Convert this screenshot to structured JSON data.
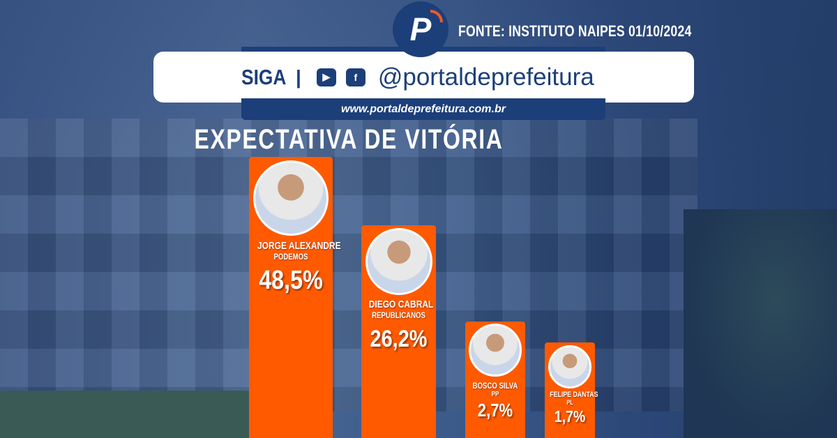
{
  "header": {
    "source": "FONTE: INSTITUTO NAIPES 01/10/2024",
    "follow": "SIGA",
    "separator": "|",
    "handle": "@portaldeprefeitura",
    "url": "www.portaldeprefeitura.com.br",
    "logo_letter": "P"
  },
  "colors": {
    "bar": "#ff5a00",
    "brand": "#1c3f7a"
  },
  "chart_data": {
    "type": "bar",
    "title": "EXPECTATIVA DE VITÓRIA",
    "categories": [
      "JORGE ALEXANDRE",
      "DIEGO CABRAL",
      "BOSCO SILVA",
      "FELIPE DANTAS"
    ],
    "parties": [
      "PODEMOS",
      "REPUBLICANOS",
      "PP",
      "PL"
    ],
    "values": [
      48.5,
      26.2,
      2.7,
      1.7
    ],
    "labels": [
      "48,5%",
      "26,2%",
      "2,7%",
      "1,7%"
    ],
    "unit": "%"
  }
}
